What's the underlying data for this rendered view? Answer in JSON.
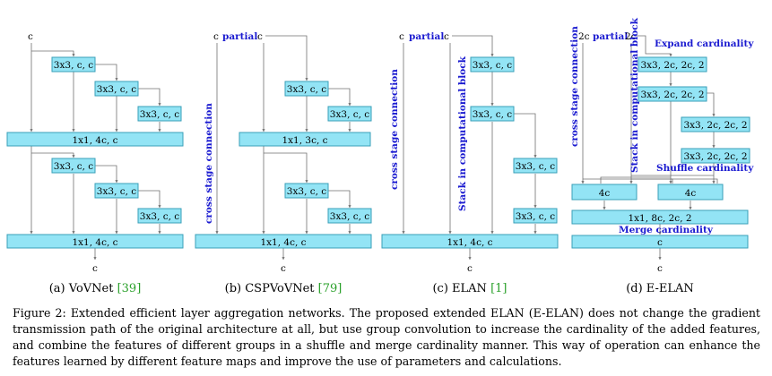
{
  "panels": {
    "a": {
      "caption": "(a) VoVNet",
      "cite": "[39]",
      "input": "c",
      "output": "c",
      "boxes": [
        "3x3, c, c",
        "3x3, c, c",
        "3x3, c, c",
        "1x1, 4c, c",
        "3x3, c, c",
        "3x3, c, c",
        "3x3, c, c",
        "1x1, 4c, c"
      ]
    },
    "b": {
      "caption": "(b) CSPVoVNet",
      "cite": "[79]",
      "input_label": "c",
      "partial": "partial",
      "input_right": "c",
      "output": "c",
      "side_label": "cross stage connection",
      "boxes": [
        "3x3, c, c",
        "3x3, c, c",
        "1x1, 3c, c",
        "3x3, c, c",
        "3x3, c, c",
        "1x1, 4c, c"
      ]
    },
    "c": {
      "caption": "(c) ELAN",
      "cite": "[1]",
      "input_label": "c",
      "partial": "partial",
      "input_right": "c",
      "output": "c",
      "side_label": "cross stage connection",
      "stack_label": "Stack in computational block",
      "boxes": [
        "3x3, c, c",
        "3x3, c, c",
        "3x3, c, c",
        "3x3, c, c",
        "1x1, 4c, c"
      ]
    },
    "d": {
      "caption": "(d) E-ELAN",
      "input_label": "2c",
      "partial": "partial",
      "input_right": "2c",
      "output": "c",
      "side_label": "cross stage connection",
      "stack_label": "Stack in computational block",
      "expand_label": "Expand cardinality",
      "shuffle_label": "Shuffle cardinality",
      "merge_label": "Merge cardinality",
      "boxes": [
        "3x3, 2c, 2c, 2",
        "3x3, 2c, 2c, 2",
        "3x3, 2c, 2c, 2",
        "3x3, 2c, 2c, 2",
        "4c",
        "4c",
        "1x1, 8c, 2c, 2",
        "c"
      ]
    }
  },
  "figure_caption": "Figure 2: Extended efficient layer aggregation networks. The proposed extended ELAN (E-ELAN) does not change the gradient transmission path of the original architecture at all, but use group convolution to increase the cardinality of the added features, and combine the features of different groups in a shuffle and merge cardinality manner. This way of operation can enhance the features learned by different feature maps and improve the use of parameters and calculations.",
  "colors": {
    "box_fill": "#93e4f5",
    "box_stroke": "#3a9fb8",
    "annotation": "#1a1ad0",
    "citation": "#2aa02a"
  }
}
